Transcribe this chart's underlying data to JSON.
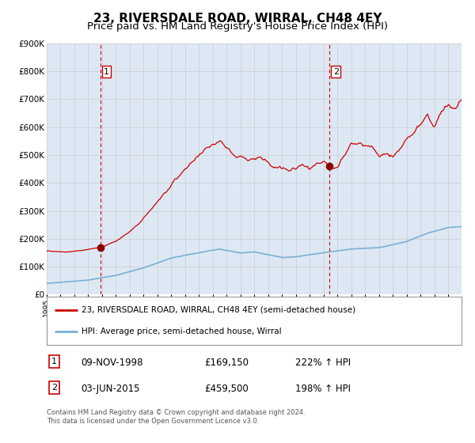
{
  "title": "23, RIVERSDALE ROAD, WIRRAL, CH48 4EY",
  "subtitle": "Price paid vs. HM Land Registry's House Price Index (HPI)",
  "legend_line1": "23, RIVERSDALE ROAD, WIRRAL, CH48 4EY (semi-detached house)",
  "legend_line2": "HPI: Average price, semi-detached house, Wirral",
  "table_row1": [
    "1",
    "09-NOV-1998",
    "£169,150",
    "222% ↑ HPI"
  ],
  "table_row2": [
    "2",
    "03-JUN-2015",
    "£459,500",
    "198% ↑ HPI"
  ],
  "footnote": "Contains HM Land Registry data © Crown copyright and database right 2024.\nThis data is licensed under the Open Government Licence v3.0.",
  "sale1_date": 1998.87,
  "sale1_price": 169150,
  "sale2_date": 2015.42,
  "sale2_price": 459500,
  "ylim": [
    0,
    900000
  ],
  "yticks": [
    0,
    100000,
    200000,
    300000,
    400000,
    500000,
    600000,
    700000,
    800000,
    900000
  ],
  "bg_color": "#dde8f4",
  "plot_bg": "#ffffff",
  "line1_color": "#cc0000",
  "line2_color": "#7ab0d4",
  "vline_color": "#cc0000",
  "marker_color": "#8b0000",
  "grid_color": "#cccccc",
  "title_fontsize": 11,
  "subtitle_fontsize": 9.5
}
